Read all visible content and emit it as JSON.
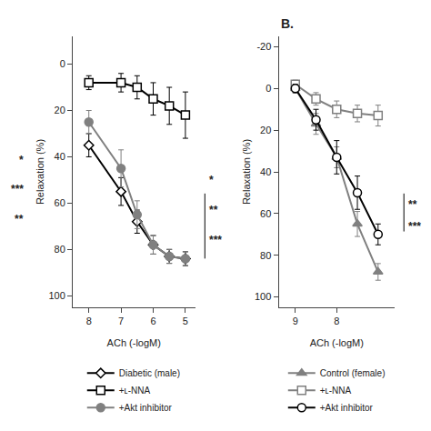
{
  "chart_data": [
    {
      "type": "line",
      "xlabel": "ACh (-logM)",
      "ylabel": "Relaxation (%)",
      "xlim": [
        8.5,
        4.7
      ],
      "ylim": [
        105,
        -12
      ],
      "xticks": [
        8,
        7,
        6,
        5
      ],
      "yticks": [
        0,
        20,
        40,
        60,
        80,
        100
      ],
      "grid": false,
      "legend": "bottom",
      "x": [
        8.0,
        7.0,
        6.5,
        6.0,
        5.5,
        5.0
      ],
      "series": [
        {
          "name": "Diabetic (male)",
          "color": "#000000",
          "marker": "diamond-open",
          "values": [
            35,
            55,
            68,
            78,
            83,
            84
          ],
          "yerr": [
            5,
            6,
            5,
            4,
            3,
            3
          ]
        },
        {
          "name": "+ʟ-NNA",
          "color": "#000000",
          "marker": "square-open",
          "values": [
            8,
            8,
            10,
            15,
            18,
            22
          ],
          "yerr": [
            3,
            4,
            5,
            7,
            8,
            10
          ]
        },
        {
          "name": "+Akt inhibitor",
          "color": "#808080",
          "marker": "circle",
          "values": [
            25,
            45,
            65,
            78,
            83,
            84
          ],
          "yerr": [
            5,
            8,
            6,
            4,
            3,
            3
          ]
        }
      ],
      "annotations": [
        "*",
        "***",
        "**",
        "*",
        "**",
        "***"
      ]
    },
    {
      "type": "line",
      "title": "B.",
      "xlabel": "ACh (-logM)",
      "ylabel": "Relaxation (%)",
      "xlim": [
        9.4,
        6.6
      ],
      "ylim": [
        105,
        -25
      ],
      "xticks": [
        9,
        8
      ],
      "yticks": [
        -20,
        0,
        20,
        40,
        60,
        80,
        100
      ],
      "grid": false,
      "legend": "bottom",
      "x": [
        9.0,
        8.5,
        8.0,
        7.5,
        7.0
      ],
      "series": [
        {
          "name": "Control (female)",
          "color": "#808080",
          "marker": "triangle-up",
          "values": [
            0,
            17,
            33,
            65,
            88
          ],
          "yerr": [
            2,
            5,
            5,
            6,
            4
          ]
        },
        {
          "name": "+ʟ-NNA",
          "color": "#808080",
          "marker": "square-open",
          "values": [
            -2,
            5,
            10,
            12,
            13
          ],
          "yerr": [
            2,
            3,
            4,
            4,
            5
          ]
        },
        {
          "name": "+Akt inhibitor",
          "color": "#000000",
          "marker": "circle-open",
          "values": [
            0,
            15,
            33,
            50,
            70
          ],
          "yerr": [
            2,
            5,
            8,
            8,
            5
          ]
        }
      ],
      "annotations": [
        "**",
        "***"
      ]
    }
  ]
}
